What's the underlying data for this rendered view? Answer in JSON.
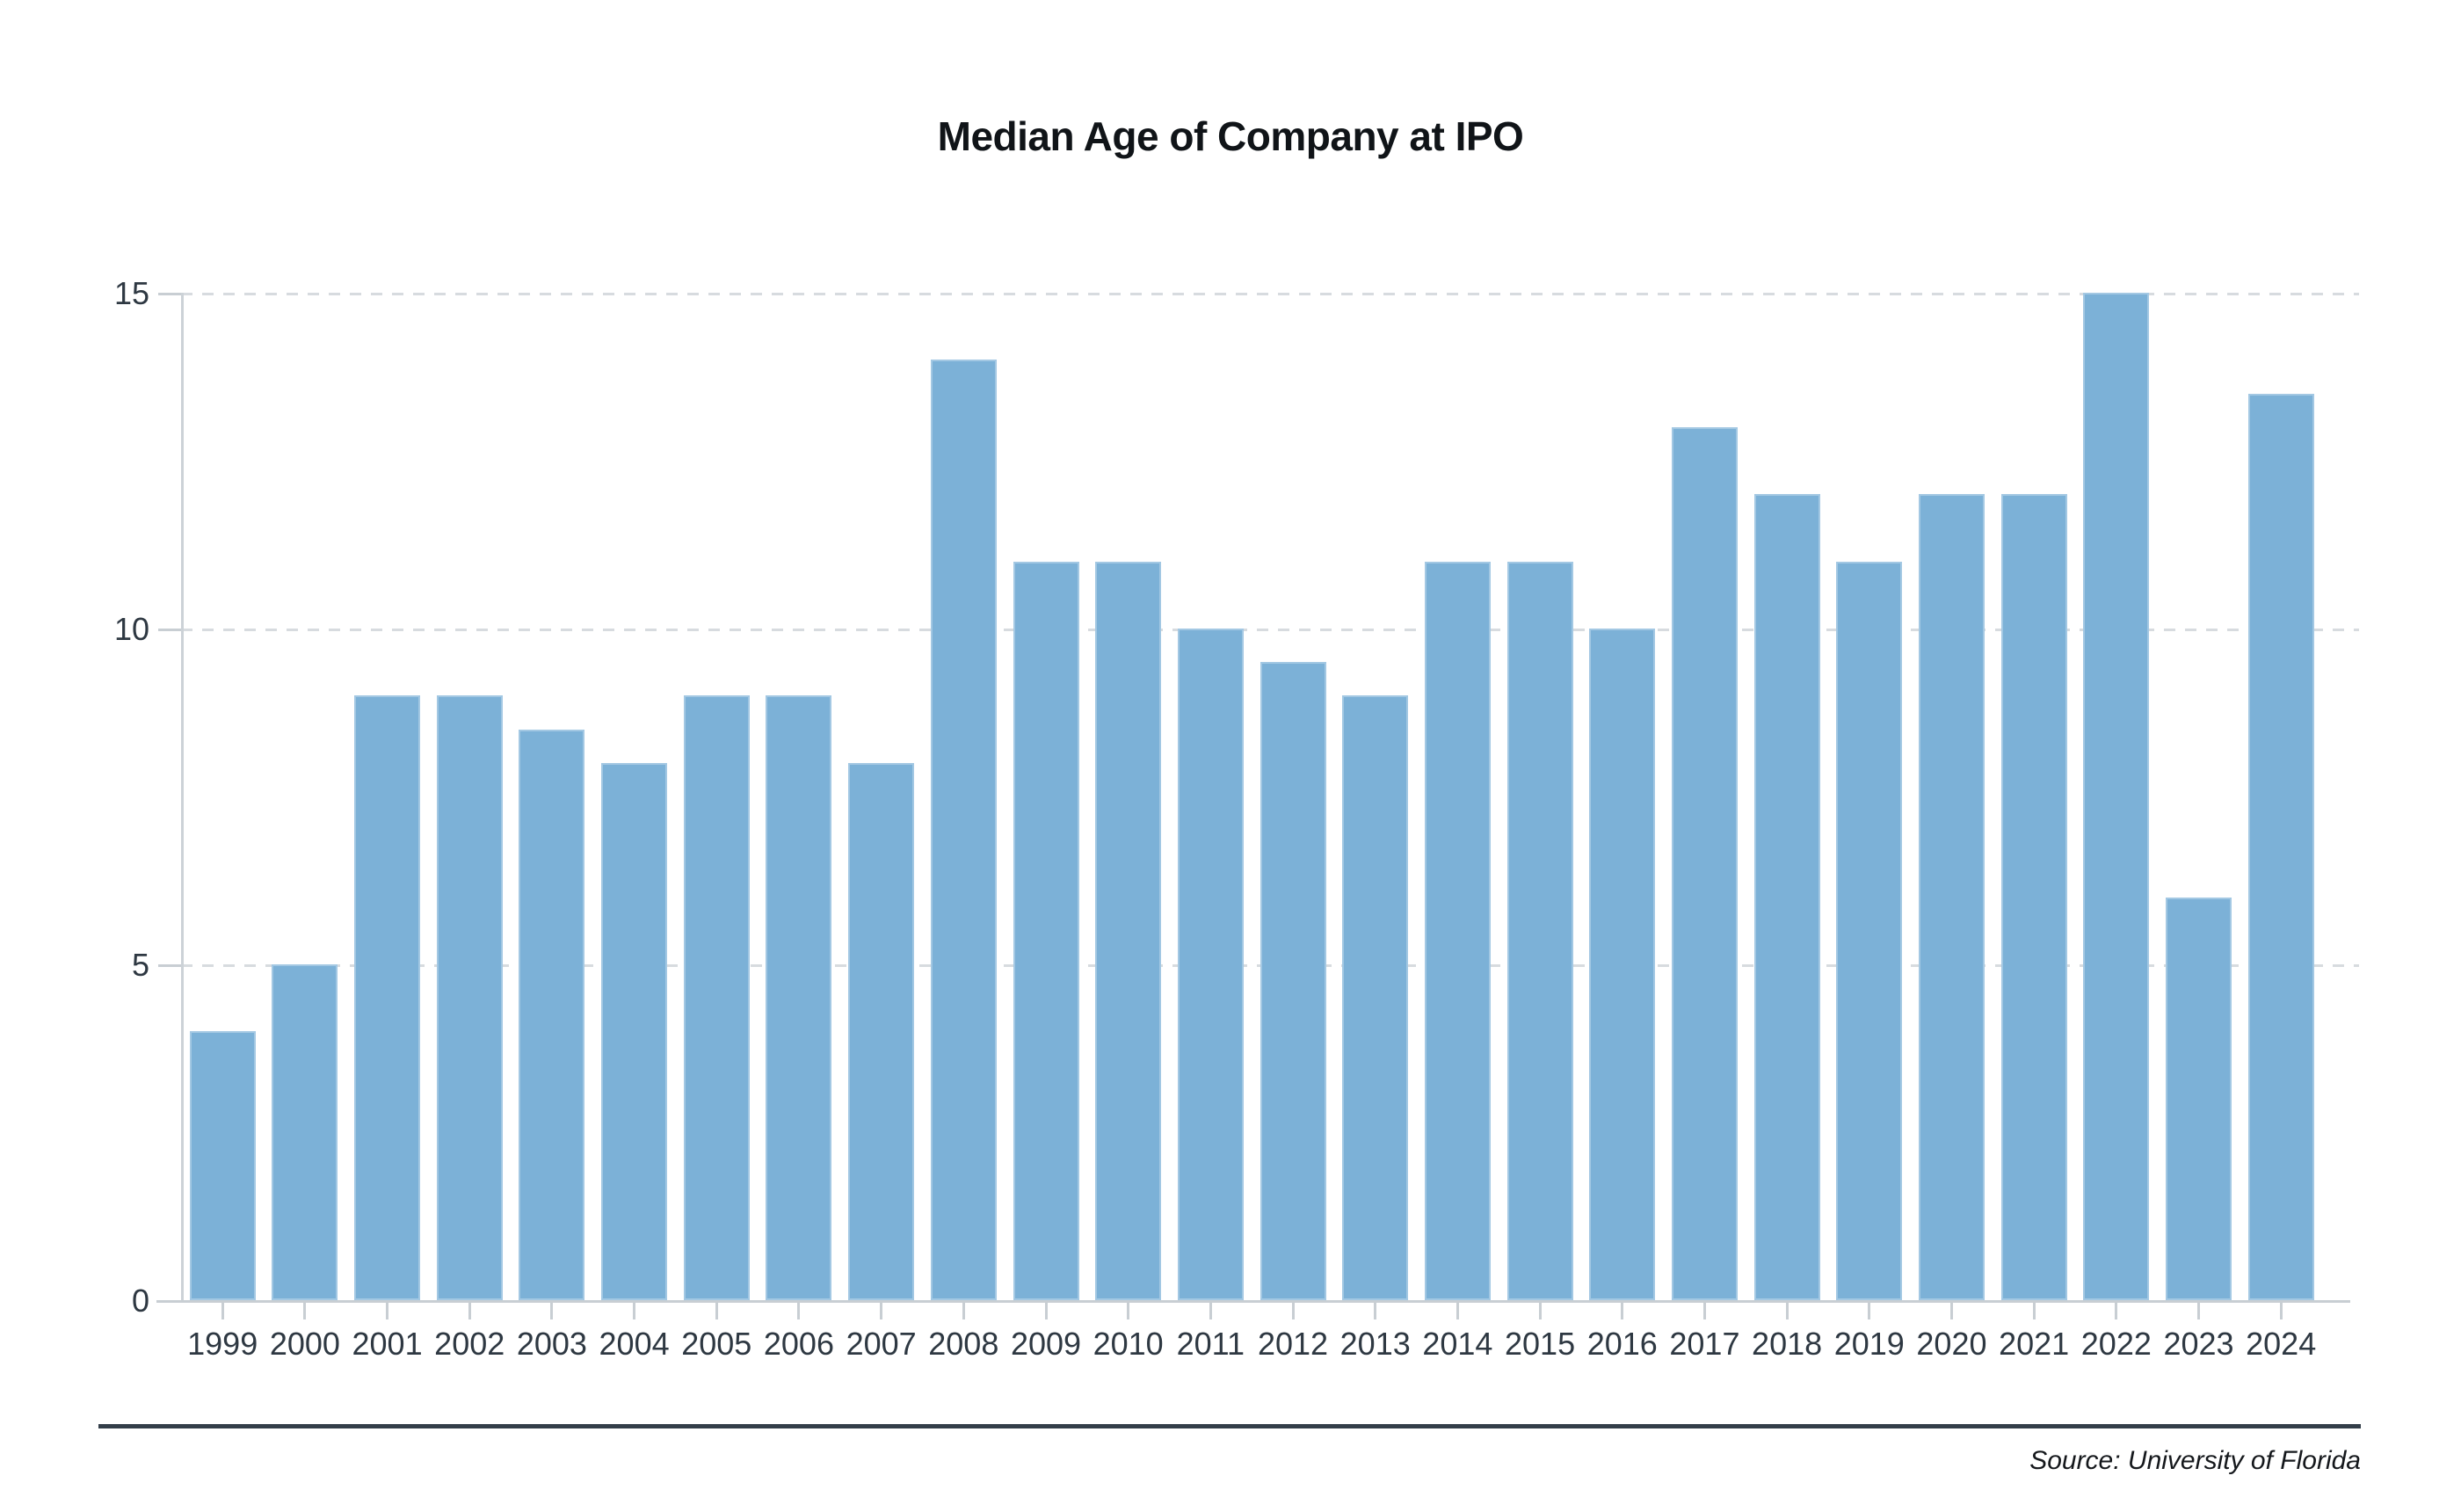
{
  "chart_data": {
    "type": "bar",
    "title": "Median Age of Company at IPO",
    "categories": [
      "1999",
      "2000",
      "2001",
      "2002",
      "2003",
      "2004",
      "2005",
      "2006",
      "2007",
      "2008",
      "2009",
      "2010",
      "2011",
      "2012",
      "2013",
      "2014",
      "2015",
      "2016",
      "2017",
      "2018",
      "2019",
      "2020",
      "2021",
      "2022",
      "2023",
      "2024"
    ],
    "values": [
      4,
      5,
      9,
      9,
      8.5,
      8,
      9,
      9,
      8,
      14,
      11,
      11,
      10,
      9.5,
      9,
      11,
      11,
      10,
      13,
      12,
      11,
      12,
      12,
      15,
      6,
      13.5
    ],
    "xlabel": "",
    "ylabel": "",
    "ylim": [
      0,
      15
    ],
    "y_ticks": [
      0,
      5,
      10,
      15
    ],
    "grid": "horizontal-dashed",
    "legend_position": "none",
    "bar_color": "#7cb1d7",
    "gridline_color": "#d7dbdf",
    "axis_color": "#c8ced3",
    "tick_label_color": "#2e3842",
    "title_color": "#101418"
  },
  "footer": {
    "source_label": "Source: University of Florida",
    "rule_color": "#333e49"
  }
}
